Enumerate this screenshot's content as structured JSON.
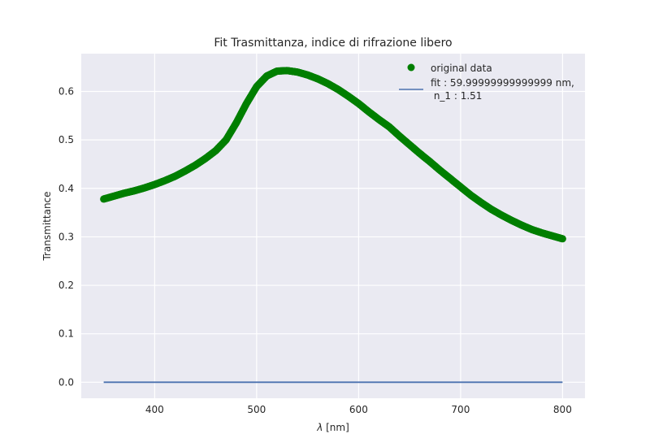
{
  "chart_data": {
    "type": "scatter",
    "title": "Fit Trasmittanza, indice di rifrazione libero",
    "xlabel_symbol": "λ",
    "xlabel_unit": " [nm]",
    "ylabel": "Transmittance",
    "xlim": [
      328,
      822
    ],
    "ylim": [
      -0.033,
      0.678
    ],
    "xticks": [
      400,
      500,
      600,
      700,
      800
    ],
    "yticks": [
      0.0,
      0.1,
      0.2,
      0.3,
      0.4,
      0.5,
      0.6
    ],
    "xtick_labels": [
      "400",
      "500",
      "600",
      "700",
      "800"
    ],
    "ytick_labels": [
      "0.0",
      "0.1",
      "0.2",
      "0.3",
      "0.4",
      "0.5",
      "0.6"
    ],
    "grid": true,
    "legend_position": "upper-right",
    "colors": {
      "background": "#eaeaf2",
      "grid": "#ffffff",
      "data": "#007f00",
      "fit": "#4c72b0"
    },
    "series": [
      {
        "name": "original data",
        "kind": "scatter",
        "x": [
          350,
          360,
          370,
          380,
          390,
          400,
          410,
          420,
          430,
          440,
          450,
          460,
          470,
          480,
          490,
          500,
          510,
          520,
          530,
          540,
          550,
          560,
          570,
          580,
          590,
          600,
          610,
          620,
          630,
          640,
          650,
          660,
          670,
          680,
          690,
          700,
          710,
          720,
          730,
          740,
          750,
          760,
          770,
          780,
          790,
          800
        ],
        "y": [
          0.378,
          0.384,
          0.39,
          0.395,
          0.401,
          0.408,
          0.416,
          0.425,
          0.436,
          0.448,
          0.462,
          0.478,
          0.5,
          0.535,
          0.575,
          0.61,
          0.632,
          0.642,
          0.643,
          0.64,
          0.634,
          0.626,
          0.616,
          0.604,
          0.59,
          0.575,
          0.558,
          0.542,
          0.527,
          0.508,
          0.49,
          0.472,
          0.455,
          0.437,
          0.42,
          0.403,
          0.386,
          0.371,
          0.357,
          0.345,
          0.334,
          0.324,
          0.315,
          0.308,
          0.302,
          0.296
        ]
      },
      {
        "name": "fit : 59.99999999999999 nm,\n n_1 : 1.51",
        "name_line1": "fit : 59.99999999999999 nm,",
        "name_line2": " n_1 : 1.51",
        "kind": "line",
        "x": [
          350,
          800
        ],
        "y": [
          0.0,
          0.0
        ]
      }
    ]
  }
}
